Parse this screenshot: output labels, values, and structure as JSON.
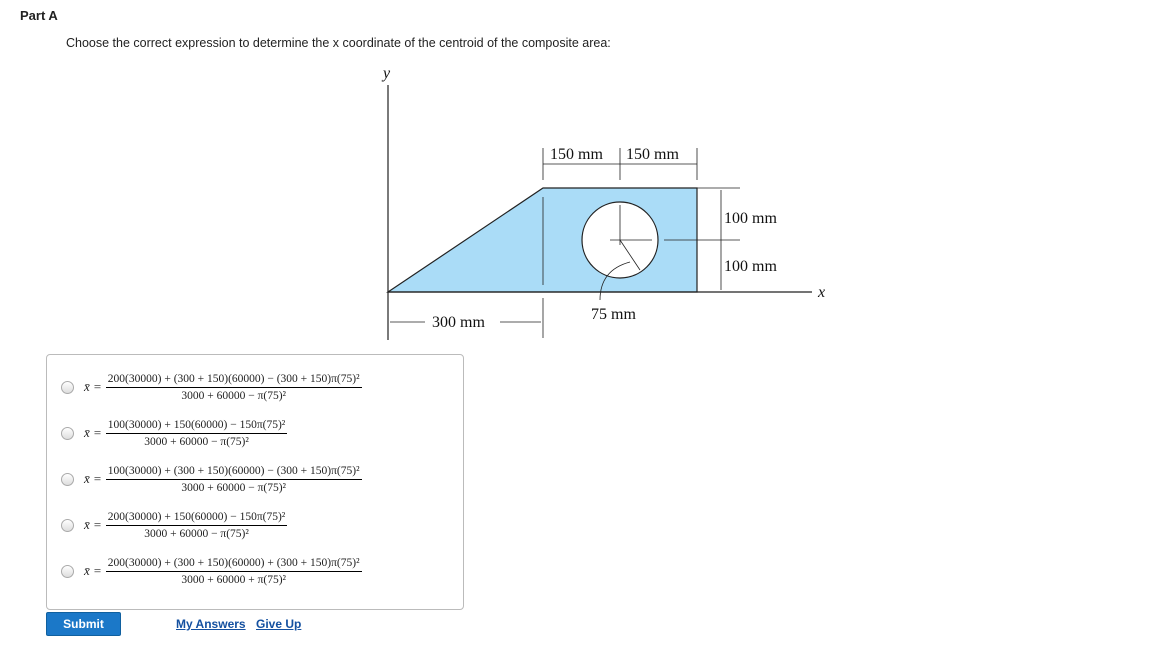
{
  "part_title": "Part A",
  "prompt": "Choose the correct expression to determine the x coordinate of the centroid of the composite area:",
  "diagram": {
    "y_label": "y",
    "x_label": "x",
    "dim_150a": "150 mm",
    "dim_150b": "150 mm",
    "dim_100a": "100 mm",
    "dim_100b": "100 mm",
    "dim_300": "300 mm",
    "dim_75": "75 mm",
    "fill_color": "#aadcf7"
  },
  "lhs": "x̄ =",
  "options": [
    {
      "num": "200(30000) + (300 + 150)(60000) − (300 + 150)π(75)²",
      "den": "3000 + 60000 − π(75)²"
    },
    {
      "num": "100(30000) + 150(60000) − 150π(75)²",
      "den": "3000 + 60000 − π(75)²"
    },
    {
      "num": "100(30000) + (300 + 150)(60000) − (300 + 150)π(75)²",
      "den": "3000 + 60000 − π(75)²"
    },
    {
      "num": "200(30000) + 150(60000) − 150π(75)²",
      "den": "3000 + 60000 − π(75)²"
    },
    {
      "num": "200(30000) + (300 + 150)(60000) + (300 + 150)π(75)²",
      "den": "3000 + 60000 + π(75)²"
    }
  ],
  "submit": "Submit",
  "my_answers": "My Answers",
  "give_up": "Give Up"
}
